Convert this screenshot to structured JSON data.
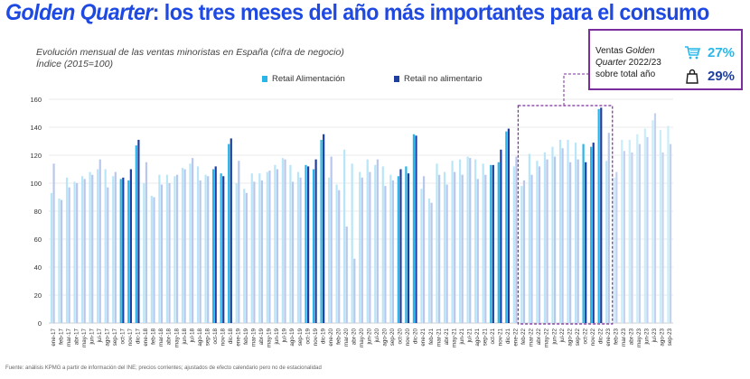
{
  "header": {
    "title_brand": "Golden Quarter",
    "title_rest": ": los tres meses del año más importantes para el consumo"
  },
  "subtitle": {
    "line1": "Evolución mensual de las ventas minoristas en España (cifra de negocio)",
    "line2": "Índice (2015=100)"
  },
  "callout": {
    "label_line1": "Ventas ",
    "label_line1_italic": "Golden",
    "label_line2_italic": "Quarter",
    "label_line2": " 2022/23",
    "label_line3": "sobre total año",
    "food_icon": "shopping-cart-icon",
    "food_value": "27%",
    "nonfood_icon": "shopping-bag-icon",
    "nonfood_value": "29%"
  },
  "footnote": "Fuente: análisis KPMG a partir de información del INE; precios corrientes; ajustados de efecto calendario pero no de estacionalidad",
  "colors": {
    "title": "#1E49E2",
    "food": "#29B5E8",
    "nonfood": "#1E3FA0",
    "faded_food": "#C9EDF9",
    "faded_nonfood": "#C5D1EE",
    "highlight_box": "#7B2D9E",
    "grid": "#E4E4E4"
  },
  "chart_data": {
    "type": "bar",
    "ylim": [
      0,
      160
    ],
    "yticks": [
      0,
      20,
      40,
      60,
      80,
      100,
      120,
      140,
      160
    ],
    "grid": true,
    "legend_position": "top-center",
    "highlighted_range": [
      "feb-22",
      "ene-23"
    ],
    "categories": [
      "ene-17",
      "feb-17",
      "mar-17",
      "abr-17",
      "may-17",
      "jun-17",
      "jul-17",
      "ago-17",
      "sep-17",
      "oct-17",
      "nov-17",
      "dic-17",
      "ene-18",
      "feb-18",
      "mar-18",
      "abr-18",
      "may-18",
      "jun-18",
      "jul-18",
      "ago-18",
      "sep-18",
      "oct-18",
      "nov-18",
      "dic-18",
      "ene-19",
      "feb-19",
      "mar-19",
      "abr-19",
      "may-19",
      "jun-19",
      "jul-19",
      "ago-19",
      "sep-19",
      "oct-19",
      "nov-19",
      "dic-19",
      "ene-20",
      "feb-20",
      "mar-20",
      "abr-20",
      "may-20",
      "jun-20",
      "jul-20",
      "ago-20",
      "sep-20",
      "oct-20",
      "nov-20",
      "dic-20",
      "ene-21",
      "feb-21",
      "mar-21",
      "abr-21",
      "may-21",
      "jun-21",
      "jul-21",
      "ago-21",
      "sep-21",
      "oct-21",
      "nov-21",
      "dic-21",
      "ene-22",
      "feb-22",
      "mar-22",
      "abr-22",
      "may-22",
      "jun-22",
      "jul-22",
      "ago-22",
      "sep-22",
      "oct-22",
      "nov-22",
      "dic-22",
      "ene-23",
      "feb-23",
      "mar-23",
      "abr-23",
      "may-23",
      "jun-23",
      "jul-23",
      "ago-23",
      "sep-23"
    ],
    "series": [
      {
        "name": "Retail Alimentación",
        "values": [
          93,
          89,
          104,
          101,
          105,
          108,
          110,
          110,
          105,
          103,
          102,
          127,
          100,
          91,
          106,
          106,
          105,
          111,
          114,
          112,
          106,
          110,
          107,
          128,
          100,
          96,
          107,
          107,
          108,
          113,
          118,
          113,
          108,
          113,
          110,
          131,
          104,
          99,
          124,
          114,
          108,
          117,
          113,
          112,
          106,
          105,
          112,
          135,
          96,
          89,
          114,
          108,
          116,
          117,
          119,
          117,
          114,
          113,
          115,
          137,
          112,
          98,
          121,
          116,
          122,
          126,
          131,
          131,
          129,
          128,
          126,
          153,
          116,
          104,
          131,
          131,
          135,
          139,
          145,
          138,
          141
        ]
      },
      {
        "name": "Retail no alimentario",
        "values": [
          114,
          88,
          97,
          100,
          103,
          106,
          117,
          97,
          108,
          104,
          110,
          131,
          115,
          90,
          99,
          100,
          106,
          110,
          118,
          102,
          105,
          112,
          105,
          132,
          116,
          93,
          101,
          102,
          109,
          110,
          117,
          101,
          104,
          112,
          117,
          135,
          119,
          95,
          69,
          46,
          104,
          108,
          117,
          98,
          102,
          110,
          107,
          134,
          105,
          86,
          106,
          99,
          108,
          106,
          118,
          103,
          106,
          113,
          124,
          139,
          119,
          102,
          106,
          112,
          117,
          119,
          125,
          115,
          117,
          115,
          129,
          154,
          136,
          108,
          123,
          122,
          128,
          133,
          150,
          122,
          128
        ]
      }
    ]
  }
}
